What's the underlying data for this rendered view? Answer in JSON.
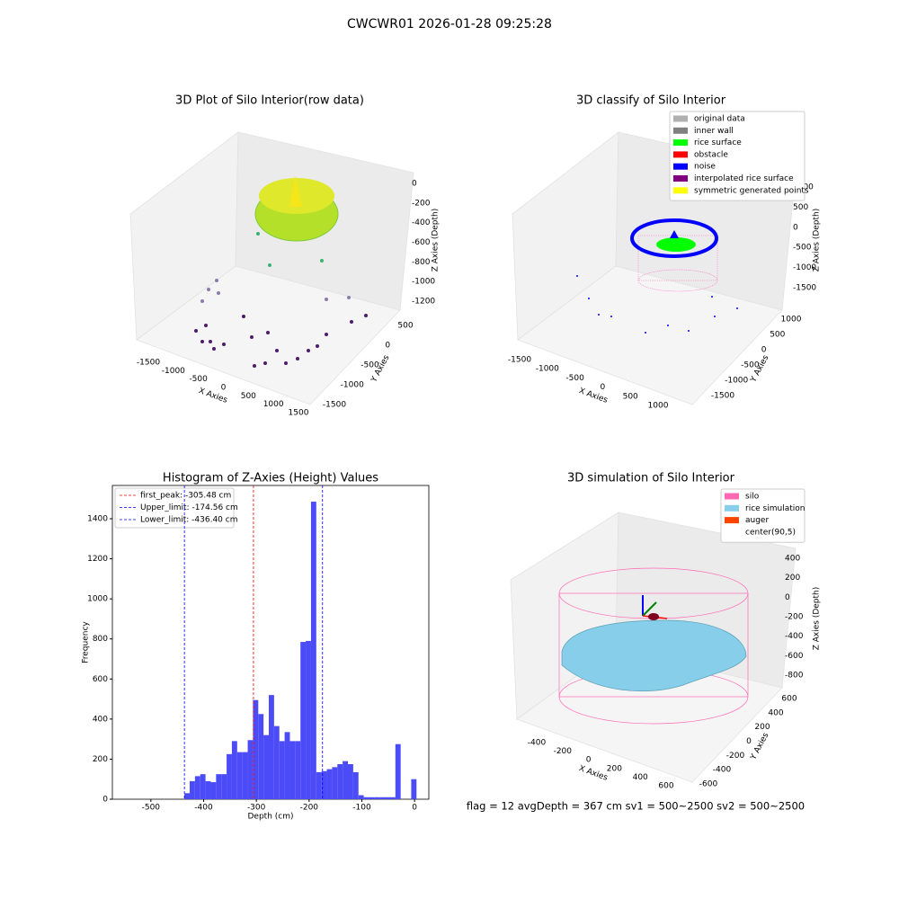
{
  "title": "CWCWR01 2026-01-28 09:25:28",
  "footer": "flag = 12  avgDepth = 367 cm  sv1 = 500~2500  sv2 = 500~2500",
  "chart_data": [
    {
      "type": "scatter3d",
      "title": "3D Plot of Silo Interior(row data)",
      "x_label": "X Axies",
      "y_label": "Y Axies",
      "z_label": "Z Axies (Depth)",
      "xticks": [
        -1500,
        -1000,
        -500,
        0,
        500,
        1000,
        1500
      ],
      "yticks": [
        -1500,
        -1000,
        -500,
        0,
        500
      ],
      "zticks": [
        -1200,
        -1000,
        -800,
        -600,
        -400,
        -200,
        0
      ]
    },
    {
      "type": "scatter3d",
      "title": "3D classify of Silo Interior",
      "x_label": "X Axies",
      "y_label": "Y Axies",
      "z_label": "Z Axies (Depth)",
      "xticks": [
        -1500,
        -1000,
        -500,
        0,
        500,
        1000
      ],
      "yticks": [
        -1500,
        -1000,
        -500,
        0,
        500,
        1000
      ],
      "zticks": [
        -1500,
        -1000,
        -500,
        0,
        500,
        1000
      ],
      "legend": [
        {
          "name": "original data",
          "color": "#b0b0b0"
        },
        {
          "name": "inner wall",
          "color": "#808080"
        },
        {
          "name": "rice surface",
          "color": "#00ff00"
        },
        {
          "name": "obstacle",
          "color": "#ff0000"
        },
        {
          "name": "noise",
          "color": "#0000ff"
        },
        {
          "name": "interpolated rice surface",
          "color": "#800080"
        },
        {
          "name": "symmetric generated points",
          "color": "#ffff00"
        }
      ]
    },
    {
      "type": "histogram",
      "title": "Histogram of Z-Axies (Height) Values",
      "x_label": "Depth (cm)",
      "y_label": "Frequency",
      "color": "#4b4bf7",
      "bins": [
        -436.4,
        -426.4,
        -416.4,
        -406.4,
        -396.4,
        -386.4,
        -376.4,
        -366.4,
        -356.4,
        -346.4,
        -336.4,
        -326.4,
        -316.4,
        -306.4,
        -296.4,
        -286.4,
        -276.4,
        -266.4,
        -256.4,
        -246.4,
        -236.4,
        -226.4,
        -216.4,
        -206.4,
        -196.4,
        -186.4,
        -176.4,
        -166.4,
        -156.4,
        -146.4,
        -136.4,
        -126.4,
        -116.4,
        -106.4,
        -96.4,
        -86.4,
        -76.4,
        -66.4,
        -56.4,
        -46.4,
        -36.4,
        -26.4,
        -16.4,
        -6.4,
        3.6
      ],
      "counts": [
        30,
        90,
        115,
        125,
        90,
        85,
        125,
        125,
        225,
        290,
        235,
        235,
        295,
        495,
        425,
        320,
        520,
        365,
        290,
        335,
        290,
        290,
        785,
        790,
        1485,
        135,
        140,
        150,
        160,
        175,
        190,
        175,
        135,
        20,
        10,
        10,
        10,
        10,
        10,
        10,
        275,
        0,
        0,
        100
      ],
      "xlim": [
        -573,
        27
      ],
      "ylim": [
        0,
        1566
      ],
      "xticks": [
        -500,
        -400,
        -300,
        -200,
        -100,
        0
      ],
      "yticks": [
        0,
        200,
        400,
        600,
        800,
        1000,
        1200,
        1400
      ],
      "vlines": [
        {
          "label": "first_peak: -305.48 cm",
          "value": -305.48,
          "color": "#ff0000"
        },
        {
          "label": "Upper_limit: -174.56 cm",
          "value": -174.56,
          "color": "#0000ff"
        },
        {
          "label": "Lower_limit: -436.40 cm",
          "value": -436.4,
          "color": "#0000ff"
        }
      ]
    },
    {
      "type": "surface3d",
      "title": "3D simulation of Silo Interior",
      "x_label": "X Axies",
      "y_label": "Y Axies",
      "z_label": "Z Axies (Depth)",
      "xticks": [
        -400,
        -200,
        0,
        200,
        400,
        600
      ],
      "yticks": [
        -600,
        -400,
        -200,
        0,
        200,
        400,
        600
      ],
      "zticks": [
        -800,
        -600,
        -400,
        -200,
        0,
        200,
        400
      ],
      "legend": [
        {
          "name": "silo",
          "color": "#ff69b4"
        },
        {
          "name": "rice simulation",
          "color": "#87ceeb"
        },
        {
          "name": "auger",
          "color": "#ff4500"
        },
        {
          "name": "center(90,5)",
          "color": "#ffffff"
        }
      ]
    }
  ]
}
